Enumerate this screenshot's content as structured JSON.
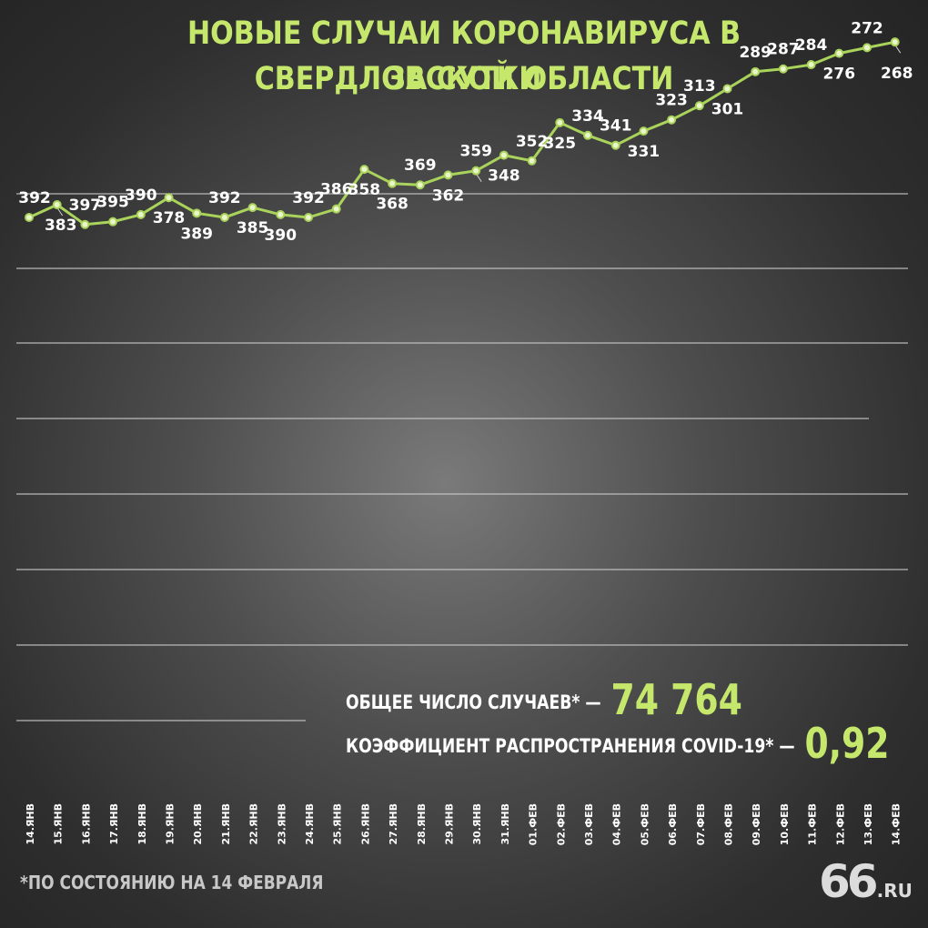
{
  "title": {
    "line1": "НОВЫЕ СЛУЧАИ КОРОНАВИРУСА В СВЕРДЛОВСКОЙ ОБЛАСТИ",
    "line2": "ЗА СУТКИ"
  },
  "summary": {
    "total_label": "ОБЩЕЕ ЧИСЛО СЛУЧАЕВ* —",
    "total_value": "74 764",
    "coef_label": "КОЭФФИЦИЕНТ РАСПРОСТРАНЕНИЯ COVID-19* —",
    "coef_value": "0,92"
  },
  "footnote": "*ПО СОСТОЯНИЮ НА 14 ФЕВРАЛЯ",
  "logo": {
    "number": "66",
    "suffix": ".RU"
  },
  "colors": {
    "accent": "#c5e86c",
    "line": "#a9d35a",
    "grid": "#cfcfcf",
    "text": "#ffffff"
  },
  "chart_data": {
    "type": "line",
    "title": "НОВЫЕ СЛУЧАИ КОРОНАВИРУСА В СВЕРДЛОВСКОЙ ОБЛАСТИ ЗА СУТКИ",
    "categories": [
      "14.ЯНВ",
      "15.ЯНВ",
      "16.ЯНВ",
      "17.ЯНВ",
      "18.ЯНВ",
      "19.ЯНВ",
      "20.ЯНВ",
      "21.ЯНВ",
      "22.ЯНВ",
      "23.ЯНВ",
      "24.ЯНВ",
      "25.ЯНВ",
      "26.ЯНВ",
      "27.ЯНВ",
      "28.ЯНВ",
      "29.ЯНВ",
      "30.ЯНВ",
      "31.ЯНВ",
      "01.ФЕВ",
      "02.ФЕВ",
      "03.ФЕВ",
      "04.ФЕВ",
      "05.ФЕВ",
      "06.ФЕВ",
      "07.ФЕВ",
      "08.ФЕВ",
      "09.ФЕВ",
      "10.ФЕВ",
      "11.ФЕВ",
      "12.ФЕВ",
      "13.ФЕВ",
      "14.ФЕВ"
    ],
    "values": [
      392,
      383,
      397,
      395,
      390,
      378,
      389,
      392,
      385,
      390,
      392,
      386,
      358,
      368,
      369,
      362,
      359,
      348,
      352,
      325,
      334,
      341,
      331,
      323,
      313,
      301,
      289,
      287,
      284,
      276,
      272,
      268
    ],
    "label_positions": [
      "above",
      "below",
      "above",
      "above",
      "above",
      "below",
      "below",
      "above",
      "below",
      "below",
      "above",
      "above",
      "below",
      "below",
      "above",
      "below",
      "above",
      "below",
      "above",
      "below",
      "above",
      "above",
      "below",
      "above",
      "above",
      "below",
      "above",
      "above",
      "above",
      "below",
      "above",
      "below"
    ],
    "grid": true,
    "legend": "none",
    "xlabel": "",
    "ylabel": ""
  }
}
